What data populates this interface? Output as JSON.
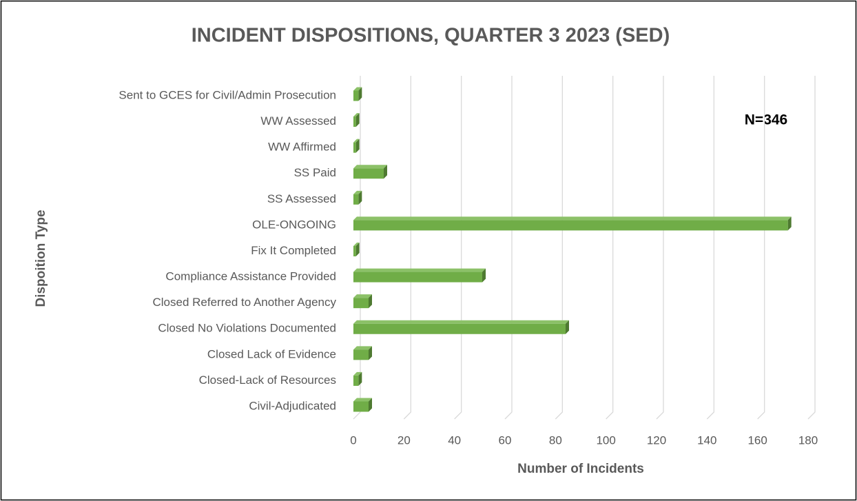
{
  "chart_data": {
    "type": "bar",
    "orientation": "horizontal",
    "title": "INCIDENT DISPOSITIONS, QUARTER 3 2023 (SED)",
    "x_label": "Number of Incidents",
    "y_label": "Dispoition Type",
    "annotation": "N=346",
    "categories": [
      "Sent to GCES for Civil/Admin Prosecution",
      "WW Assessed",
      "WW Affirmed",
      "SS Paid",
      "SS Assessed",
      "OLE-ONGOING",
      "Fix It Completed",
      "Compliance Assistance Provided",
      "Closed Referred to Another Agency",
      "Closed No Violations Documented",
      "Closed Lack of Evidence",
      "Closed-Lack of Resources",
      "Civil-Adjudicated"
    ],
    "values": [
      2,
      1,
      1,
      12,
      2,
      172,
      1,
      51,
      6,
      84,
      6,
      2,
      6
    ],
    "color": "#70ad47",
    "xlim": [
      0,
      180
    ],
    "xticks": [
      0,
      20,
      40,
      60,
      80,
      100,
      120,
      140,
      160,
      180
    ],
    "grid": true
  }
}
